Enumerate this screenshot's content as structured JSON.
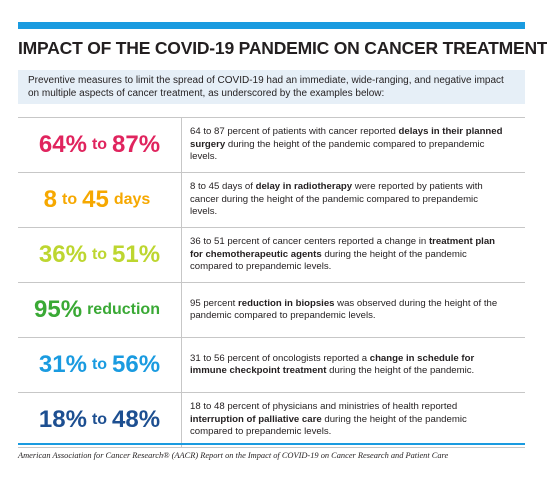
{
  "title": "IMPACT OF THE COVID-19 PANDEMIC ON CANCER TREATMENT",
  "intro": "Preventive measures to limit the spread of COVID-19 had an immediate, wide-ranging, and negative impact on multiple aspects of cancer treatment, as underscored by the examples below:",
  "rows": [
    {
      "color": "#e0245e",
      "stat_a": "64%",
      "stat_joiner": "to",
      "stat_b": "87%",
      "desc_before": "64 to 87 percent of patients with cancer reported ",
      "desc_bold": "delays in their planned surgery",
      "desc_after": " during the height of the pandemic compared to prepandemic levels."
    },
    {
      "color": "#f6a800",
      "stat_a": "8",
      "stat_joiner": "to",
      "stat_b": "45",
      "stat_suffix": "days",
      "desc_before": "8 to 45 days of ",
      "desc_bold": "delay in radiotherapy",
      "desc_after": " were reported by patients with cancer during the height of the pandemic compared to prepandemic levels."
    },
    {
      "color": "#bdd630",
      "stat_a": "36%",
      "stat_joiner": "to",
      "stat_b": "51%",
      "desc_before": "36 to 51 percent of cancer centers reported a change in ",
      "desc_bold": "treatment plan for chemotherapeutic agents",
      "desc_after": " during the height of the pandemic compared to prepandemic levels."
    },
    {
      "color": "#3aa935",
      "stat_a": "95%",
      "stat_suffix": "reduction",
      "desc_before": "95 percent ",
      "desc_bold": "reduction in biopsies",
      "desc_after": " was observed during the height of the pandemic compared to prepandemic levels."
    },
    {
      "color": "#1a9be0",
      "stat_a": "31%",
      "stat_joiner": "to",
      "stat_b": "56%",
      "desc_before": "31 to 56 percent of oncologists reported a ",
      "desc_bold": "change in schedule for immune checkpoint treatment",
      "desc_after": " during the height of the pandemic."
    },
    {
      "color": "#1d4f91",
      "stat_a": "18%",
      "stat_joiner": "to",
      "stat_b": "48%",
      "desc_before": "18 to 48 percent of physicians and ministries of health reported ",
      "desc_bold": "interruption of palliative care",
      "desc_after": " during the height of the pandemic compared to prepandemic levels."
    }
  ],
  "source": "American Association for Cancer Research® (AACR) Report on the Impact of COVID-19 on Cancer Research and Patient Care"
}
